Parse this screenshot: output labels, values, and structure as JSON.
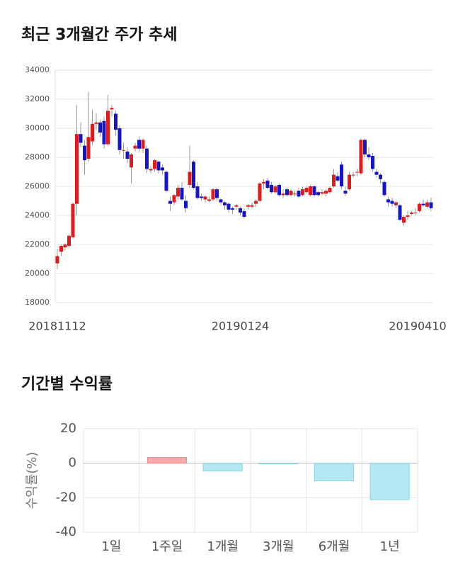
{
  "chart_data": [
    {
      "type": "candlestick",
      "title": "최근 3개월간 주가 추세",
      "x": [
        "20181112",
        null,
        null,
        null,
        null,
        null,
        null,
        null,
        null,
        null,
        null,
        null,
        null,
        null,
        null,
        null,
        null,
        null,
        null,
        null,
        null,
        null,
        null,
        null,
        null,
        null,
        null,
        null,
        null,
        null,
        null,
        null,
        null,
        null,
        null,
        null,
        null,
        null,
        null,
        null,
        null,
        null,
        null,
        null,
        null,
        null,
        null,
        "20190124",
        null,
        null,
        null,
        null,
        null,
        null,
        null,
        null,
        null,
        null,
        null,
        null,
        null,
        null,
        null,
        null,
        null,
        null,
        null,
        null,
        null,
        null,
        null,
        null,
        null,
        null,
        null,
        null,
        null,
        null,
        null,
        null,
        null,
        null,
        null,
        null,
        null,
        null,
        null,
        null,
        null,
        null,
        null,
        null,
        null,
        null,
        null,
        null,
        "20190410"
      ],
      "open": [
        20700,
        21500,
        21800,
        21900,
        22500,
        24800,
        29600,
        28800,
        27900,
        29100,
        30300,
        30400,
        30500,
        28900,
        31300,
        31000,
        30000,
        28500,
        28400,
        27300,
        28600,
        29200,
        28600,
        28600,
        27100,
        27200,
        27700,
        27300,
        27000,
        25000,
        24900,
        25300,
        25900,
        25000,
        26100,
        27700,
        26000,
        25300,
        25100,
        25000,
        25100,
        25800,
        25100,
        24900,
        24800,
        24500,
        24600,
        24500,
        24300,
        24600,
        24600,
        24800,
        25000,
        26200,
        26400,
        26100,
        25600,
        26100,
        25400,
        25800,
        25400,
        25500,
        25700,
        25400,
        25600,
        25400,
        26000,
        25600,
        25500,
        25500,
        25600,
        26000,
        26700,
        27500,
        25700,
        25800,
        26800,
        27000,
        26900,
        29200,
        28200,
        28100,
        27000,
        26800,
        26300,
        25100,
        25000,
        24700,
        24700,
        23500,
        23900,
        24100,
        24200,
        24300,
        24800,
        24600,
        24900
      ],
      "high": [
        21700,
        22000,
        22100,
        22700,
        24900,
        31600,
        30400,
        29200,
        32500,
        31300,
        31000,
        30600,
        30800,
        32300,
        31600,
        31200,
        30200,
        29000,
        28700,
        28300,
        29000,
        29400,
        29300,
        28800,
        27400,
        27900,
        27800,
        27500,
        27100,
        25300,
        25500,
        26100,
        26300,
        25400,
        28800,
        27800,
        26300,
        25500,
        25400,
        25300,
        25900,
        25900,
        25200,
        25000,
        24900,
        24600,
        24800,
        24600,
        24500,
        24800,
        24900,
        25100,
        26300,
        26500,
        26600,
        26300,
        26100,
        26200,
        25800,
        25900,
        25800,
        25700,
        25900,
        26000,
        26000,
        26100,
        26100,
        25700,
        25800,
        25800,
        26000,
        27200,
        27000,
        27700,
        26000,
        27000,
        27000,
        27200,
        29300,
        29300,
        28700,
        28300,
        27200,
        26900,
        26400,
        25300,
        25200,
        25000,
        24800,
        24000,
        24300,
        24300,
        24500,
        24900,
        25100,
        25100,
        25200
      ],
      "low": [
        20300,
        21200,
        21600,
        21800,
        22400,
        24000,
        28700,
        26800,
        27700,
        28800,
        29900,
        29400,
        28600,
        28800,
        30800,
        29500,
        28200,
        27900,
        27600,
        26200,
        28400,
        28400,
        28300,
        26900,
        26900,
        27000,
        26900,
        26800,
        25600,
        24300,
        24700,
        25100,
        25000,
        24200,
        25900,
        25800,
        25100,
        25000,
        24900,
        24900,
        25000,
        25000,
        24700,
        24400,
        24200,
        24100,
        24400,
        24000,
        23800,
        24400,
        24500,
        24600,
        24900,
        25800,
        25800,
        25500,
        25500,
        25300,
        25200,
        25300,
        25300,
        25300,
        25200,
        25300,
        25500,
        25300,
        25300,
        25300,
        25400,
        25300,
        25500,
        25900,
        26300,
        25800,
        25300,
        25700,
        26600,
        26700,
        26800,
        28000,
        27800,
        27000,
        26600,
        26200,
        25300,
        24600,
        24600,
        24500,
        23600,
        23300,
        23700,
        24000,
        24000,
        24200,
        24600,
        24500,
        24300
      ],
      "close": [
        21200,
        21900,
        22000,
        22600,
        24800,
        29600,
        29000,
        27800,
        29400,
        30300,
        30400,
        29700,
        28900,
        31200,
        31400,
        29900,
        28500,
        28500,
        27900,
        28200,
        28800,
        28600,
        29200,
        27200,
        27200,
        27800,
        27100,
        27100,
        25700,
        24800,
        25400,
        25900,
        25100,
        24500,
        27000,
        25900,
        25200,
        25200,
        25300,
        25100,
        25800,
        25200,
        24900,
        24700,
        24400,
        24400,
        24700,
        24200,
        23900,
        24700,
        24700,
        25000,
        26200,
        26300,
        25900,
        25600,
        26000,
        25400,
        25500,
        25400,
        25700,
        25500,
        25300,
        25800,
        25900,
        26000,
        25400,
        25400,
        25600,
        25700,
        25900,
        26800,
        26400,
        26000,
        25500,
        26800,
        26800,
        27000,
        29200,
        28200,
        28000,
        27200,
        26800,
        26500,
        25400,
        24900,
        24800,
        24900,
        23700,
        23900,
        24000,
        24200,
        24200,
        24800,
        24700,
        24900,
        24500
      ],
      "up_color": "#e01b1b",
      "down_color": "#1414c8",
      "ylim": [
        18000,
        34000
      ],
      "yticks": [
        18000,
        20000,
        22000,
        24000,
        26000,
        28000,
        30000,
        32000,
        34000
      ],
      "grid": true
    },
    {
      "type": "bar",
      "title": "기간별 수익률",
      "y_label": "수익률(%)",
      "categories": [
        "1일",
        "1주일",
        "1개월",
        "3개월",
        "6개월",
        "1년"
      ],
      "values": [
        0,
        3.3,
        -4.5,
        -0.4,
        -10.2,
        -21.2
      ],
      "positive_color": "#f7a8a8",
      "negative_color": "#b2e9f3",
      "ylim": [
        -40,
        20
      ],
      "yticks": [
        -40,
        -20,
        0,
        20
      ],
      "grid": true
    }
  ]
}
